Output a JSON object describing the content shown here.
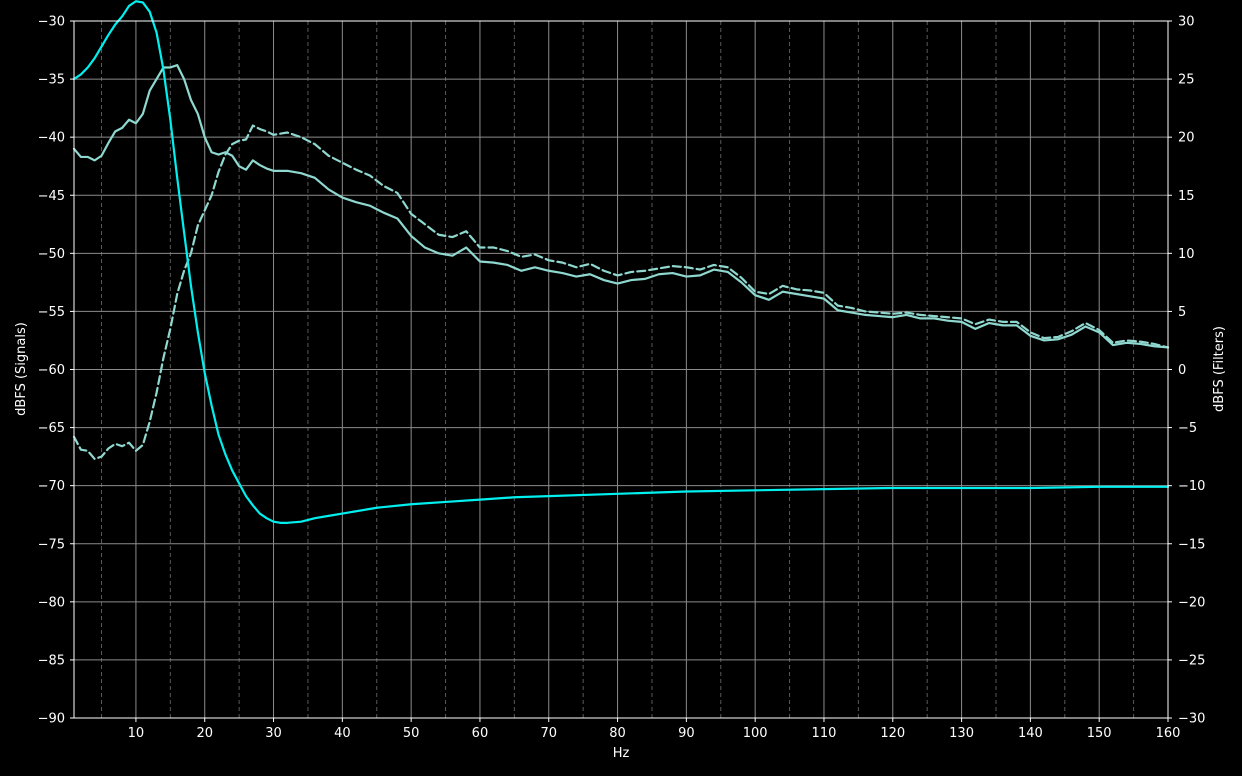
{
  "chart_data": {
    "type": "line",
    "title": "",
    "xlabel": "Hz",
    "ylabel_left": "dBFS (Signals)",
    "ylabel_right": "dBFS (Filters)",
    "xlim": [
      1,
      160
    ],
    "ylim_left": [
      -90,
      -30
    ],
    "ylim_right": [
      -30,
      30
    ],
    "x_ticks": [
      10,
      20,
      30,
      40,
      50,
      60,
      70,
      80,
      90,
      100,
      110,
      120,
      130,
      140,
      150,
      160
    ],
    "y_ticks_left": [
      -30,
      -35,
      -40,
      -45,
      -50,
      -55,
      -60,
      -65,
      -70,
      -75,
      -80,
      -85,
      -90
    ],
    "y_ticks_right": [
      30,
      25,
      20,
      15,
      10,
      5,
      0,
      -5,
      -10,
      -15,
      -20,
      -25,
      -30
    ],
    "grid": true,
    "colors": {
      "background": "#000000",
      "grid_major": "#8c8c8c",
      "grid_minor": "#5a5a5a",
      "axis": "#ffffff",
      "signal": "#8fd8cf",
      "filter": "#00f0f0"
    },
    "series": [
      {
        "axis": "left",
        "style": "solid",
        "color": "#8fd8cf",
        "x": [
          1,
          2,
          3,
          4,
          5,
          6,
          7,
          8,
          9,
          10,
          11,
          12,
          13,
          14,
          15,
          16,
          17,
          18,
          19,
          20,
          21,
          22,
          23,
          24,
          25,
          26,
          27,
          28,
          29,
          30,
          32,
          34,
          36,
          38,
          40,
          42,
          44,
          46,
          48,
          50,
          52,
          54,
          56,
          58,
          60,
          62,
          64,
          66,
          68,
          70,
          72,
          74,
          76,
          78,
          80,
          82,
          84,
          86,
          88,
          90,
          92,
          94,
          96,
          98,
          100,
          102,
          104,
          106,
          108,
          110,
          112,
          114,
          116,
          118,
          120,
          122,
          124,
          126,
          128,
          130,
          132,
          134,
          136,
          138,
          140,
          142,
          144,
          146,
          148,
          150,
          152,
          154,
          156,
          158,
          160
        ],
        "y": [
          -41,
          -41.7,
          -41.7,
          -42,
          -41.6,
          -40.5,
          -39.5,
          -39.2,
          -38.5,
          -38.8,
          -38,
          -36,
          -35,
          -34,
          -34,
          -33.8,
          -35,
          -36.8,
          -38,
          -40,
          -41.3,
          -41.5,
          -41.3,
          -41.6,
          -42.5,
          -42.8,
          -42,
          -42.4,
          -42.7,
          -42.9,
          -42.9,
          -43.1,
          -43.5,
          -44.5,
          -45.2,
          -45.6,
          -45.9,
          -46.5,
          -47,
          -48.5,
          -49.5,
          -50,
          -50.2,
          -49.5,
          -50.7,
          -50.8,
          -51,
          -51.5,
          -51.2,
          -51.5,
          -51.7,
          -52,
          -51.8,
          -52.3,
          -52.6,
          -52.3,
          -52.2,
          -51.8,
          -51.7,
          -52,
          -51.9,
          -51.4,
          -51.6,
          -52.5,
          -53.6,
          -54,
          -53.3,
          -53.5,
          -53.7,
          -53.9,
          -54.9,
          -55.1,
          -55.3,
          -55.4,
          -55.5,
          -55.3,
          -55.6,
          -55.6,
          -55.8,
          -55.9,
          -56.5,
          -56,
          -56.2,
          -56.2,
          -57.1,
          -57.5,
          -57.4,
          -57,
          -56.3,
          -56.8,
          -57.9,
          -57.7,
          -57.8,
          -58,
          -58.1
        ]
      },
      {
        "axis": "left",
        "style": "dashed",
        "color": "#8fd8cf",
        "x": [
          1,
          2,
          3,
          4,
          5,
          6,
          7,
          8,
          9,
          10,
          11,
          12,
          13,
          14,
          15,
          16,
          17,
          18,
          19,
          20,
          21,
          22,
          23,
          24,
          25,
          26,
          27,
          28,
          29,
          30,
          32,
          34,
          36,
          38,
          40,
          42,
          44,
          46,
          48,
          50,
          52,
          54,
          56,
          58,
          60,
          62,
          64,
          66,
          68,
          70,
          72,
          74,
          76,
          78,
          80,
          82,
          84,
          86,
          88,
          90,
          92,
          94,
          96,
          98,
          100,
          102,
          104,
          106,
          108,
          110,
          112,
          114,
          116,
          118,
          120,
          122,
          124,
          126,
          128,
          130,
          132,
          134,
          136,
          138,
          140,
          142,
          144,
          146,
          148,
          150,
          152,
          154,
          156,
          158,
          160
        ],
        "y": [
          -65.8,
          -66.9,
          -67,
          -67.7,
          -67.5,
          -66.8,
          -66.4,
          -66.6,
          -66.3,
          -67,
          -66.5,
          -64.5,
          -62,
          -59,
          -56.5,
          -53.5,
          -51.5,
          -50,
          -47.6,
          -46.3,
          -45,
          -43,
          -41.5,
          -40.6,
          -40.3,
          -40.2,
          -39,
          -39.3,
          -39.5,
          -39.8,
          -39.6,
          -40,
          -40.6,
          -41.6,
          -42.2,
          -42.8,
          -43.3,
          -44.2,
          -44.8,
          -46.6,
          -47.5,
          -48.4,
          -48.6,
          -48.1,
          -49.5,
          -49.5,
          -49.8,
          -50.3,
          -50.1,
          -50.6,
          -50.8,
          -51.2,
          -50.9,
          -51.5,
          -51.9,
          -51.6,
          -51.5,
          -51.3,
          -51.1,
          -51.2,
          -51.4,
          -51,
          -51.2,
          -52.1,
          -53.3,
          -53.5,
          -52.8,
          -53.1,
          -53.2,
          -53.4,
          -54.5,
          -54.7,
          -55,
          -55.1,
          -55.2,
          -55.1,
          -55.3,
          -55.4,
          -55.5,
          -55.6,
          -56.1,
          -55.7,
          -55.9,
          -55.9,
          -56.8,
          -57.3,
          -57.2,
          -56.7,
          -56,
          -56.6,
          -57.7,
          -57.5,
          -57.6,
          -57.8,
          -58.1
        ]
      },
      {
        "axis": "right",
        "style": "solid",
        "color": "#00f0f0",
        "x": [
          1,
          2,
          3,
          4,
          5,
          6,
          7,
          8,
          9,
          10,
          11,
          12,
          13,
          14,
          15,
          16,
          17,
          18,
          19,
          20,
          21,
          22,
          23,
          24,
          25,
          26,
          27,
          28,
          29,
          30,
          31,
          32,
          34,
          36,
          38,
          40,
          45,
          50,
          55,
          60,
          65,
          70,
          80,
          90,
          100,
          110,
          120,
          130,
          140,
          150,
          160
        ],
        "y": [
          25,
          25.4,
          26,
          26.8,
          27.8,
          28.8,
          29.7,
          30.4,
          31.3,
          31.7,
          31.6,
          30.8,
          29,
          25.8,
          21.5,
          16.5,
          11.8,
          7.2,
          3.2,
          -0.3,
          -3.1,
          -5.6,
          -7.3,
          -8.7,
          -9.8,
          -10.9,
          -11.7,
          -12.4,
          -12.8,
          -13.1,
          -13.2,
          -13.2,
          -13.1,
          -12.8,
          -12.6,
          -12.4,
          -11.9,
          -11.6,
          -11.4,
          -11.2,
          -11,
          -10.9,
          -10.7,
          -10.5,
          -10.4,
          -10.3,
          -10.2,
          -10.2,
          -10.2,
          -10.1,
          -10.1
        ]
      }
    ]
  }
}
